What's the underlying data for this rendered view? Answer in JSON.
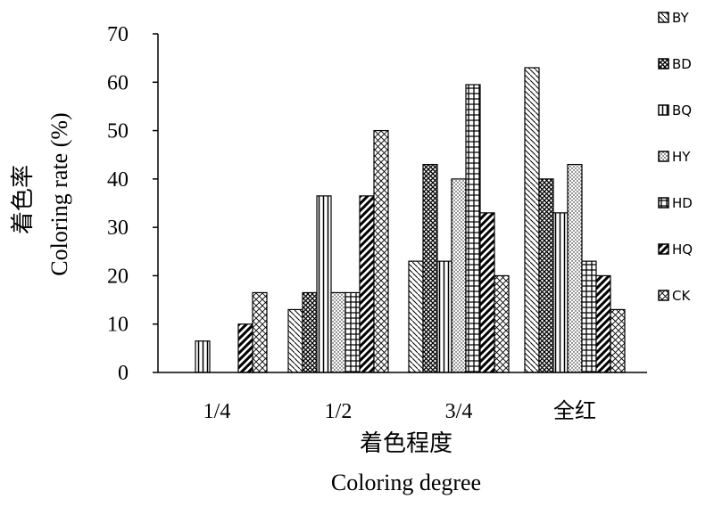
{
  "chart_data": {
    "type": "bar",
    "categories": [
      "1/4",
      "1/2",
      "3/4",
      "全红"
    ],
    "series": [
      {
        "name": "BY",
        "values": [
          0,
          13,
          23,
          63
        ],
        "pattern": "diag-light"
      },
      {
        "name": "BD",
        "values": [
          0,
          16.5,
          43,
          40
        ],
        "pattern": "crosshatch"
      },
      {
        "name": "BQ",
        "values": [
          6.5,
          36.5,
          23,
          33
        ],
        "pattern": "vertical"
      },
      {
        "name": "HY",
        "values": [
          0,
          16.5,
          40,
          43
        ],
        "pattern": "dots"
      },
      {
        "name": "HD",
        "values": [
          0,
          16.5,
          59.5,
          23
        ],
        "pattern": "grid"
      },
      {
        "name": "HQ",
        "values": [
          10,
          36.5,
          33,
          20
        ],
        "pattern": "diag-bold"
      },
      {
        "name": "CK",
        "values": [
          16.5,
          50,
          20,
          13
        ],
        "pattern": "diamond"
      }
    ],
    "y_ticks": [
      0,
      10,
      20,
      30,
      40,
      50,
      60,
      70
    ],
    "ylim": [
      0,
      70
    ],
    "ylabel_cn": "着色率",
    "ylabel_en": "Coloring rate (%)",
    "xlabel_cn": "着色程度",
    "xlabel_en": "Coloring degree",
    "legend_position": "right",
    "grid": false
  }
}
